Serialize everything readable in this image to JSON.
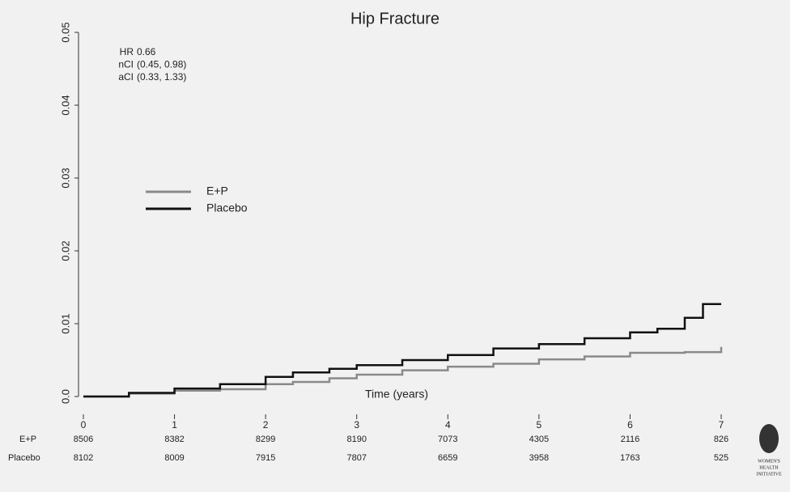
{
  "chart_data": {
    "type": "step",
    "title": "Hip Fracture",
    "x_label": "Time (years)",
    "xlim": [
      0,
      7
    ],
    "xticks": [
      0,
      1,
      2,
      3,
      4,
      5,
      6,
      7
    ],
    "ylim": [
      0,
      0.05
    ],
    "yticks": [
      {
        "value": 0,
        "label": "0.0"
      },
      0.01,
      0.02,
      0.03,
      0.04,
      0.05
    ],
    "x": [
      0,
      0.5,
      1,
      1.5,
      2,
      2.3,
      2.7,
      3,
      3.5,
      4,
      4.5,
      5,
      5.5,
      6,
      6.3,
      6.6,
      6.8,
      7
    ],
    "series": [
      {
        "name": "E+P",
        "color": "#8a8a8a",
        "values": [
          0,
          0.0004,
          0.0008,
          0.001,
          0.0017,
          0.002,
          0.0025,
          0.003,
          0.0036,
          0.0041,
          0.0045,
          0.0051,
          0.0055,
          0.006,
          0.006,
          0.0061,
          0.0061,
          0.0068
        ]
      },
      {
        "name": "Placebo",
        "color": "#111111",
        "values": [
          0,
          0.0005,
          0.0011,
          0.0017,
          0.0027,
          0.0033,
          0.0038,
          0.0043,
          0.005,
          0.0057,
          0.0066,
          0.0072,
          0.008,
          0.0088,
          0.0093,
          0.0108,
          0.0127,
          0.0127
        ]
      }
    ],
    "annotations": [
      {
        "label": "HR",
        "value": "0.66"
      },
      {
        "label": "nCI",
        "value": "(0.45, 0.98)"
      },
      {
        "label": "aCI",
        "value": "(0.33, 1.33)"
      }
    ],
    "risk_table": [
      {
        "name": "E+P",
        "counts": [
          8506,
          8382,
          8299,
          8190,
          7073,
          4305,
          2116,
          826
        ]
      },
      {
        "name": "Placebo",
        "counts": [
          8102,
          8009,
          7915,
          7807,
          6659,
          3958,
          1763,
          525
        ]
      }
    ],
    "logo_text": [
      "WOMEN'S",
      "HEALTH",
      "INITIATIVE"
    ]
  }
}
